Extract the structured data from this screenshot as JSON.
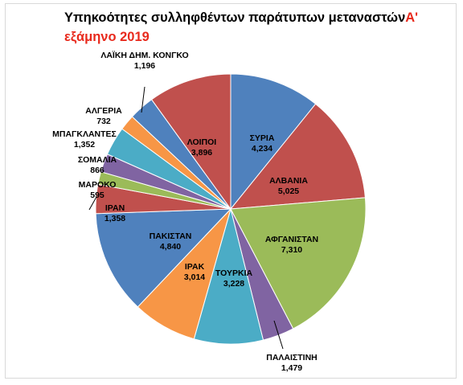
{
  "chart_data": {
    "type": "pie",
    "title_part1": "Υπηκοότητες συλληφθέντων παράτυπων μεταναστών",
    "title_part2": "Α'",
    "title_line2": "εξάμηνο 2019",
    "slices": [
      {
        "name": "ΣΥΡΙΑ",
        "label": "4,234",
        "value": 4234,
        "color": "#4f81bd"
      },
      {
        "name": "ΑΛΒΑΝΙΑ",
        "label": "5,025",
        "value": 5025,
        "color": "#c0504d"
      },
      {
        "name": "ΑΦΓΑΝΙΣΤΑΝ",
        "label": "7,310",
        "value": 7310,
        "color": "#9bbb59"
      },
      {
        "name": "ΠΑΛΑΙΣΤΙΝΗ",
        "label": "1,479",
        "value": 1479,
        "color": "#8064a2"
      },
      {
        "name": "ΤΟΥΡΚΙΑ",
        "label": "3,228",
        "value": 3228,
        "color": "#4bacc6"
      },
      {
        "name": "ΙΡΑΚ",
        "label": "3,014",
        "value": 3014,
        "color": "#f79646"
      },
      {
        "name": "ΠΑΚΙΣΤΑΝ",
        "label": "4,840",
        "value": 4840,
        "color": "#4f81bd"
      },
      {
        "name": "ΙΡΑΝ",
        "label": "1,358",
        "value": 1358,
        "color": "#c0504d"
      },
      {
        "name": "ΜΑΡΟΚΟ",
        "label": "595",
        "value": 595,
        "color": "#9bbb59"
      },
      {
        "name": "ΣΟΜΑΛΙΑ",
        "label": "866",
        "value": 866,
        "color": "#8064a2"
      },
      {
        "name": "ΜΠΑΓΚΛΑΝΤΕΣ",
        "label": "1,352",
        "value": 1352,
        "color": "#4bacc6"
      },
      {
        "name": "ΑΛΓΕΡΙΑ",
        "label": "732",
        "value": 732,
        "color": "#f79646"
      },
      {
        "name": "ΛΑΪΚΗ ΔΗΜ. ΚΟΝΓΚΟ",
        "label": "1,196",
        "value": 1196,
        "color": "#4f81bd"
      },
      {
        "name": "ΛΟΙΠΟΙ",
        "label": "3,896",
        "value": 3896,
        "color": "#c0504d"
      }
    ]
  }
}
